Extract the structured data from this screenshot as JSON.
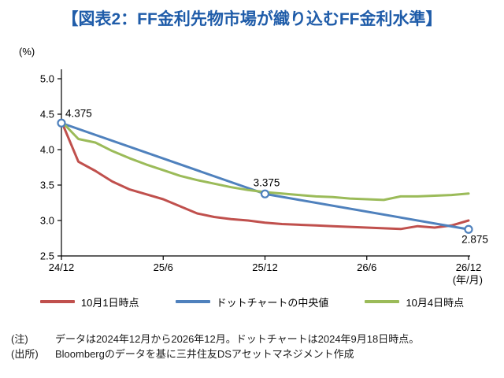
{
  "title": "【図表2：FF金利先物市場が織り込むFF金利水準】",
  "y_axis_unit": "(%)",
  "x_axis_unit": "(年/月)",
  "colors": {
    "title_blue": "#1F5CA9",
    "axis_black": "#000000",
    "series_red": "#C0504D",
    "series_blue": "#4F81BD",
    "series_green": "#9BBB59"
  },
  "notes": {
    "note_label": "(注)",
    "note_text": "データは2024年12月から2026年12月。ドットチャートは2024年9月18日時点。",
    "source_label": "(出所)",
    "source_text": "Bloombergのデータを基に三井住友DSアセットマネジメント作成"
  },
  "chart_data": {
    "type": "line",
    "title": "FF金利先物市場が織り込むFF金利水準",
    "xlabel": "(年/月)",
    "ylabel": "(%)",
    "xlim": [
      0,
      24
    ],
    "ylim": [
      2.5,
      5.0
    ],
    "y_ticks": [
      2.5,
      3.0,
      3.5,
      4.0,
      4.5,
      5.0
    ],
    "x_ticks": [
      0,
      6,
      12,
      18,
      24
    ],
    "x_tick_labels": [
      "24/12",
      "25/6",
      "25/12",
      "26/6",
      "26/12"
    ],
    "grid": false,
    "legend_position": "bottom",
    "series": [
      {
        "name": "10月1日時点",
        "color": "#C0504D",
        "markers": false,
        "x": [
          0,
          1,
          2,
          3,
          4,
          5,
          6,
          7,
          8,
          9,
          10,
          11,
          12,
          13,
          14,
          15,
          16,
          17,
          18,
          19,
          20,
          21,
          22,
          23,
          24
        ],
        "y": [
          4.4,
          3.83,
          3.7,
          3.55,
          3.44,
          3.37,
          3.3,
          3.2,
          3.1,
          3.05,
          3.02,
          3.0,
          2.97,
          2.95,
          2.94,
          2.93,
          2.92,
          2.91,
          2.9,
          2.89,
          2.88,
          2.92,
          2.9,
          2.93,
          3.0
        ]
      },
      {
        "name": "ドットチャートの中央値",
        "color": "#4F81BD",
        "markers": true,
        "x": [
          0,
          12,
          24
        ],
        "y": [
          4.375,
          3.375,
          2.875
        ],
        "point_labels": [
          {
            "x": 0,
            "y": 4.375,
            "text": "4.375",
            "pos": "above-right"
          },
          {
            "x": 12,
            "y": 3.375,
            "text": "3.375",
            "pos": "above"
          },
          {
            "x": 24,
            "y": 2.875,
            "text": "2.875",
            "pos": "below"
          }
        ]
      },
      {
        "name": "10月4日時点",
        "color": "#9BBB59",
        "markers": false,
        "x": [
          0,
          1,
          2,
          3,
          4,
          5,
          6,
          7,
          8,
          9,
          10,
          11,
          12,
          13,
          14,
          15,
          16,
          17,
          18,
          19,
          20,
          21,
          22,
          23,
          24
        ],
        "y": [
          4.4,
          4.15,
          4.1,
          3.98,
          3.88,
          3.79,
          3.71,
          3.63,
          3.57,
          3.52,
          3.47,
          3.43,
          3.4,
          3.38,
          3.36,
          3.34,
          3.33,
          3.31,
          3.3,
          3.29,
          3.34,
          3.34,
          3.35,
          3.36,
          3.38
        ]
      }
    ]
  }
}
